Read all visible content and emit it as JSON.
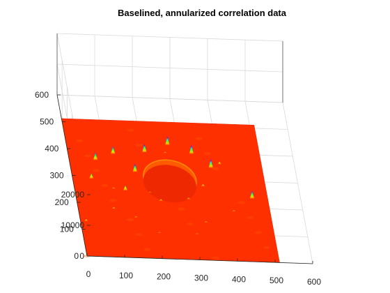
{
  "figure": {
    "background": "#ffffff",
    "axis_color": "#262626",
    "grid_color": "#d9d9d9"
  },
  "chart_data": {
    "type": "surface",
    "title": "Baselined, annularized correlation data",
    "xlabel": "",
    "ylabel": "",
    "zlabel": "",
    "xlim": [
      0,
      600
    ],
    "ylim": [
      0,
      600
    ],
    "zlim": [
      0,
      20000
    ],
    "x_ticks": [
      0,
      100,
      200,
      300,
      400,
      500,
      600
    ],
    "y_ticks": [
      0,
      100,
      200,
      300,
      400,
      500,
      600
    ],
    "z_ticks": [
      0,
      10000,
      20000
    ],
    "x_tick_labels": [
      "0",
      "100",
      "200",
      "300",
      "400",
      "500",
      "600"
    ],
    "y_tick_labels": [
      "0",
      "100",
      "200",
      "300",
      "400",
      "500",
      "600"
    ],
    "z_tick_labels": [
      "0",
      "10000",
      "20000"
    ],
    "grid": true,
    "colormap": "hsv",
    "surface_extent": {
      "x": [
        0,
        512
      ],
      "y": [
        0,
        512
      ]
    },
    "center_hole": {
      "x": 260,
      "y": 300,
      "radius": 70
    },
    "peaks": [
      {
        "x": 50,
        "y": 290,
        "z": 1800
      },
      {
        "x": 70,
        "y": 360,
        "z": 2600
      },
      {
        "x": 120,
        "y": 385,
        "z": 2700
      },
      {
        "x": 135,
        "y": 250,
        "z": 1700
      },
      {
        "x": 170,
        "y": 320,
        "z": 2900
      },
      {
        "x": 205,
        "y": 395,
        "z": 2900
      },
      {
        "x": 270,
        "y": 425,
        "z": 3100
      },
      {
        "x": 330,
        "y": 395,
        "z": 3200
      },
      {
        "x": 375,
        "y": 345,
        "z": 3100
      },
      {
        "x": 470,
        "y": 235,
        "z": 2800
      },
      {
        "x": 15,
        "y": 130,
        "z": 700
      },
      {
        "x": 95,
        "y": 180,
        "z": 600
      },
      {
        "x": 225,
        "y": 215,
        "z": 700
      },
      {
        "x": 300,
        "y": 225,
        "z": 600
      },
      {
        "x": 345,
        "y": 275,
        "z": 800
      },
      {
        "x": 400,
        "y": 360,
        "z": 900
      },
      {
        "x": 335,
        "y": 140,
        "z": 500
      },
      {
        "x": 150,
        "y": 150,
        "z": 500
      },
      {
        "x": 205,
        "y": 95,
        "z": 400
      },
      {
        "x": 305,
        "y": 95,
        "z": 400
      },
      {
        "x": 415,
        "y": 185,
        "z": 500
      },
      {
        "x": 260,
        "y": 395,
        "z": 500
      },
      {
        "x": 200,
        "y": 245,
        "z": 400
      },
      {
        "x": 105,
        "y": 255,
        "z": 500
      }
    ]
  }
}
